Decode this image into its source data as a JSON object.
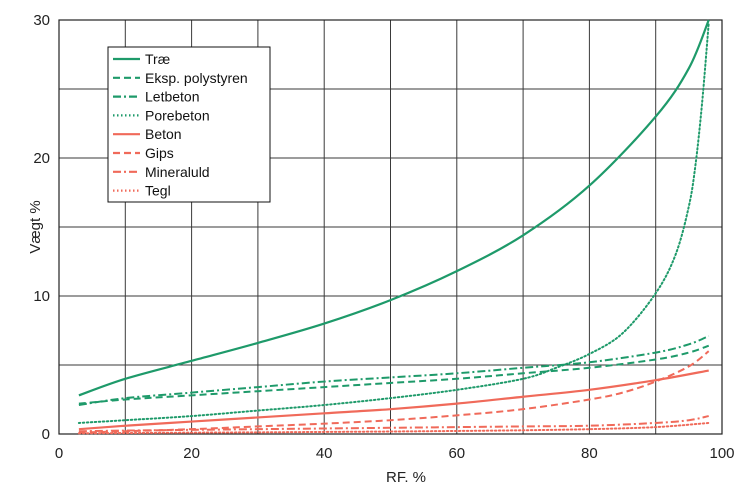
{
  "chart_data": {
    "type": "line",
    "xlabel": "RF. %",
    "ylabel": "Vægt %",
    "xlim": [
      0,
      100
    ],
    "ylim": [
      0,
      30
    ],
    "x_ticks": [
      0,
      20,
      40,
      60,
      80,
      100
    ],
    "y_ticks": [
      0,
      10,
      20,
      30
    ],
    "x_gridlines": [
      0,
      10,
      20,
      30,
      40,
      50,
      60,
      70,
      80,
      90,
      100
    ],
    "y_gridlines": [
      0,
      5,
      10,
      15,
      20,
      25,
      30
    ],
    "grid": true,
    "legend_position": "top-left",
    "colors": {
      "green": "#1e9a6a",
      "red": "#f06a5a",
      "grid": "#3a3a3a"
    },
    "series": [
      {
        "name": "Træ",
        "color": "#1e9a6a",
        "dash": "solid",
        "x": [
          3,
          10,
          20,
          30,
          40,
          50,
          60,
          70,
          80,
          90,
          95,
          98
        ],
        "y": [
          2.8,
          4.0,
          5.3,
          6.6,
          8.0,
          9.7,
          11.8,
          14.4,
          18.0,
          23.0,
          26.5,
          30.0
        ]
      },
      {
        "name": "Eksp. polystyren",
        "color": "#1e9a6a",
        "dash": "dashed",
        "x": [
          3,
          10,
          20,
          30,
          40,
          50,
          60,
          70,
          80,
          90,
          95,
          98
        ],
        "y": [
          2.2,
          2.5,
          2.8,
          3.1,
          3.4,
          3.7,
          4.0,
          4.4,
          4.8,
          5.4,
          5.9,
          6.4
        ]
      },
      {
        "name": "Letbeton",
        "color": "#1e9a6a",
        "dash": "dashdot",
        "x": [
          3,
          10,
          20,
          30,
          40,
          50,
          60,
          70,
          80,
          90,
          95,
          98
        ],
        "y": [
          2.1,
          2.6,
          3.0,
          3.4,
          3.8,
          4.1,
          4.4,
          4.8,
          5.2,
          5.9,
          6.5,
          7.1
        ]
      },
      {
        "name": "Porebeton",
        "color": "#1e9a6a",
        "dash": "dotted",
        "x": [
          3,
          10,
          20,
          30,
          40,
          50,
          60,
          70,
          75,
          80,
          85,
          90,
          93,
          95,
          96,
          97,
          98
        ],
        "y": [
          0.8,
          1.0,
          1.3,
          1.7,
          2.1,
          2.6,
          3.2,
          4.0,
          4.8,
          5.8,
          7.3,
          10.2,
          13.0,
          16.5,
          19.5,
          24.0,
          29.8
        ]
      },
      {
        "name": "Beton",
        "color": "#f06a5a",
        "dash": "solid",
        "x": [
          3,
          10,
          20,
          30,
          40,
          50,
          60,
          70,
          80,
          90,
          98
        ],
        "y": [
          0.35,
          0.6,
          0.9,
          1.2,
          1.5,
          1.8,
          2.2,
          2.7,
          3.2,
          3.9,
          4.6
        ]
      },
      {
        "name": "Gips",
        "color": "#f06a5a",
        "dash": "dashed",
        "x": [
          3,
          10,
          20,
          30,
          40,
          50,
          60,
          70,
          80,
          85,
          90,
          95,
          98
        ],
        "y": [
          0.1,
          0.2,
          0.35,
          0.55,
          0.75,
          1.0,
          1.35,
          1.8,
          2.5,
          3.0,
          3.8,
          4.9,
          6.0
        ]
      },
      {
        "name": "Mineraluld",
        "color": "#f06a5a",
        "dash": "dashdot",
        "x": [
          3,
          10,
          20,
          30,
          40,
          50,
          60,
          70,
          80,
          90,
          95,
          98
        ],
        "y": [
          0.2,
          0.25,
          0.3,
          0.35,
          0.4,
          0.45,
          0.5,
          0.55,
          0.6,
          0.8,
          1.0,
          1.3
        ]
      },
      {
        "name": "Tegl",
        "color": "#f06a5a",
        "dash": "dotted",
        "x": [
          3,
          10,
          20,
          30,
          40,
          50,
          60,
          70,
          80,
          90,
          98
        ],
        "y": [
          0.05,
          0.07,
          0.1,
          0.12,
          0.15,
          0.18,
          0.22,
          0.27,
          0.35,
          0.5,
          0.8
        ]
      }
    ]
  }
}
